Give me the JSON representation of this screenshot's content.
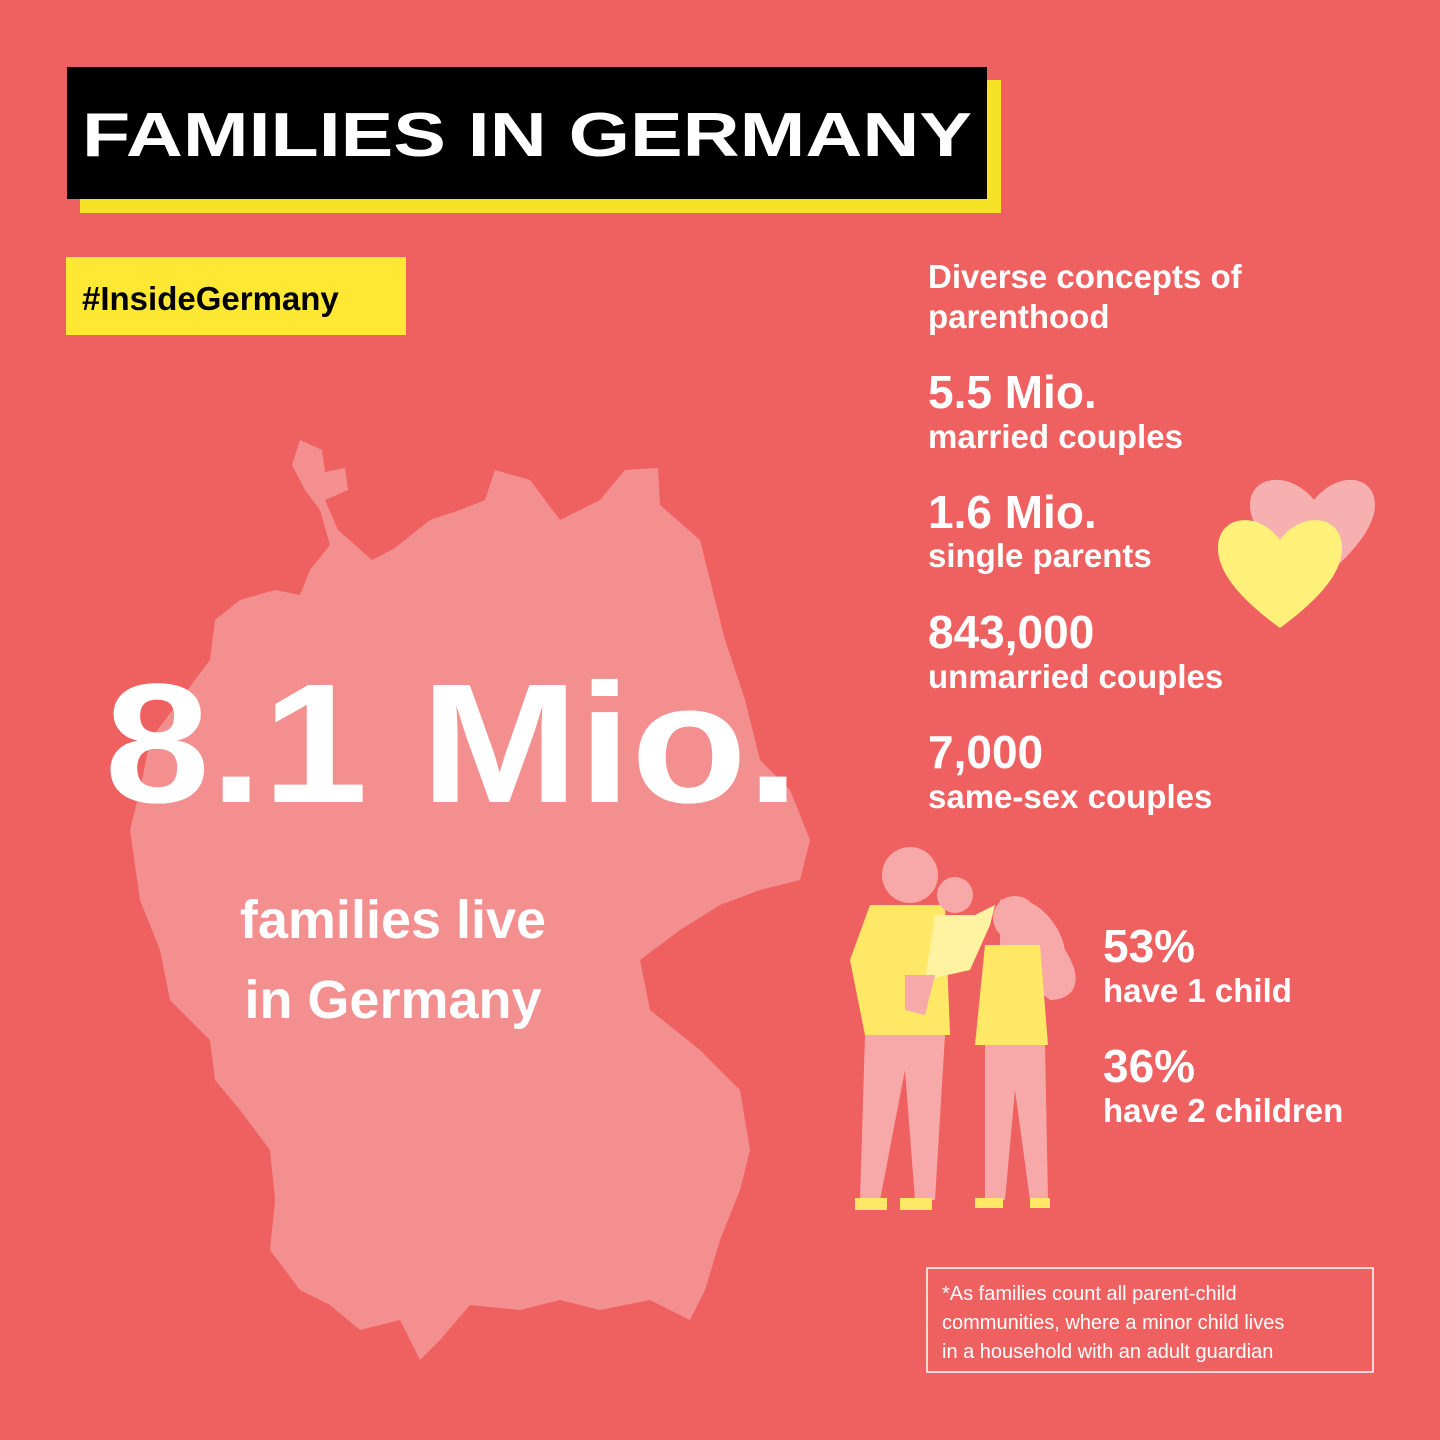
{
  "header": {
    "title": "FAMILIES IN GERMANY",
    "hashtag": "#InsideGermany"
  },
  "main": {
    "value": "8.1 Mio.",
    "caption": [
      "families live",
      "in Germany"
    ]
  },
  "stats": {
    "heading": [
      "Diverse concepts of",
      "parenthood"
    ],
    "items": [
      {
        "value": "5.5 Mio.",
        "label": "married couples"
      },
      {
        "value": "1.6 Mio.",
        "label": "single parents"
      },
      {
        "value": "843,000",
        "label": "unmarried couples"
      },
      {
        "value": "7,000",
        "label": "same-sex couples"
      }
    ]
  },
  "children": {
    "items": [
      {
        "value": "53%",
        "label": "have 1 child"
      },
      {
        "value": "36%",
        "label": "have 2 children"
      }
    ]
  },
  "footnote": [
    "*As families count all parent-child",
    "communities, where a minor child lives",
    "in a household with an adult guardian"
  ]
}
